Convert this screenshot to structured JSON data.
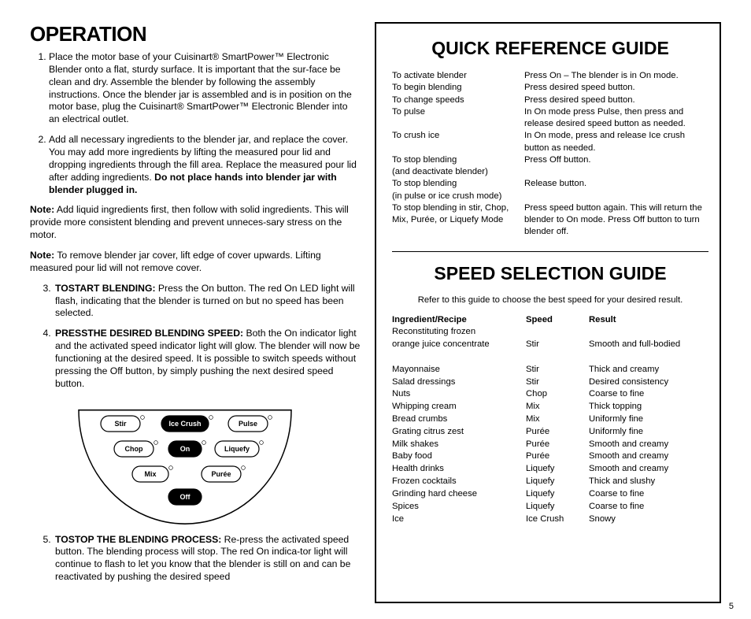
{
  "page_number": "5",
  "left": {
    "title": "OPERATION",
    "step1": "Place the motor base of your Cuisinart® SmartPower™ Electronic Blender onto a flat, sturdy surface. It is important that the sur-face be clean and dry. Assemble the blender by following the assembly instructions. Once the blender jar is assembled and is in position on the motor base, plug the Cuisinart® SmartPower™ Electronic Blender into an electrical outlet.",
    "step2_a": "Add all necessary ingredients to the blender jar, and replace the cover. You may add more ingredients by lifting the measured pour lid and dropping ingredients through the fill area. Replace the measured pour lid after adding ingredients. ",
    "step2_b": "Do not place hands into blender jar with blender plugged in.",
    "note1_lead": "Note:",
    "note1": " Add liquid ingredients first, then follow with solid ingredients. This will provide more consistent blending and prevent unneces-sary stress on the motor.",
    "note2_lead": "Note:",
    "note2": " To remove blender jar cover, lift edge of cover upwards. Lifting measured pour lid will not remove cover.",
    "step3_lead": "TOSTART BLENDING:",
    "step3": " Press the On button. The red On LED light will flash, indicating that the blender is turned on but no speed has been selected.",
    "step4_lead": "PRESSTHE DESIRED BLENDING SPEED:",
    "step4": " Both the On indicator light and the activated speed indicator light will glow. The blender will now be functioning at the desired speed. It is possible to switch speeds without pressing the Off button, by simply pushing the next desired speed button.",
    "step5_lead": "TOSTOP THE BLENDING PROCESS:",
    "step5": " Re-press the activated speed button. The blending process will stop. The red On indica-tor light will continue to flash to let you know that the blender is still on and can be reactivated by pushing the desired speed",
    "panel": {
      "buttons_white": [
        "Stir",
        "Pulse",
        "Chop",
        "Liquefy",
        "Mix",
        "Purée"
      ],
      "buttons_black": [
        "Ice Crush",
        "On",
        "Off"
      ]
    }
  },
  "right": {
    "qref_title": "QUICK REFERENCE GUIDE",
    "qref": [
      {
        "l": "To activate blender",
        "r": "Press On – The blender is in On mode."
      },
      {
        "l": "To begin blending",
        "r": "Press desired speed button."
      },
      {
        "l": "To change speeds",
        "r": "Press desired speed button."
      },
      {
        "l": "To pulse",
        "r": "In On mode press Pulse, then press and release desired speed button as needed."
      },
      {
        "l": "To crush ice",
        "r": "In On mode, press and release Ice crush button as needed."
      },
      {
        "l": "To stop blending",
        "sub": "(and deactivate blender)",
        "r": "Press Off button."
      },
      {
        "l": "To stop blending",
        "sub": "(in pulse or ice crush mode)",
        "r": "Release button."
      },
      {
        "l": "To stop blending in stir, Chop, Mix, Purée, or Liquefy Mode",
        "r": "Press speed button again. This will return the blender to On mode. Press  Off button to turn blender off."
      }
    ],
    "speed_title": "SPEED SELECTION GUIDE",
    "speed_sub": "Refer to this guide to choose the best speed for your desired result.",
    "speed_head": {
      "c1": "Ingredient/Recipe",
      "c2": "Speed",
      "c3": "Result"
    },
    "speed_rows": [
      {
        "c1": "Reconstituting frozen",
        "c2": "",
        "c3": ""
      },
      {
        "c1": "orange juice concentrate",
        "c2": "Stir",
        "c3": "Smooth and full-bodied"
      },
      {
        "c1": " ",
        "c2": "",
        "c3": ""
      },
      {
        "c1": "Mayonnaise",
        "c2": "Stir",
        "c3": "Thick and creamy"
      },
      {
        "c1": "Salad dressings",
        "c2": "Stir",
        "c3": "Desired consistency"
      },
      {
        "c1": "Nuts",
        "c2": "Chop",
        "c3": "Coarse to fine"
      },
      {
        "c1": "Whipping cream",
        "c2": "Mix",
        "c3": "Thick topping"
      },
      {
        "c1": "Bread crumbs",
        "c2": "Mix",
        "c3": "Uniformly fine"
      },
      {
        "c1": "Grating citrus zest",
        "c2": "Purée",
        "c3": "Uniformly fine"
      },
      {
        "c1": "Milk shakes",
        "c2": "Purée",
        "c3": "Smooth and creamy"
      },
      {
        "c1": "Baby food",
        "c2": "Purée",
        "c3": "Smooth and creamy"
      },
      {
        "c1": "Health drinks",
        "c2": "Liquefy",
        "c3": "Smooth and creamy"
      },
      {
        "c1": "Frozen cocktails",
        "c2": "Liquefy",
        "c3": "Thick and slushy"
      },
      {
        "c1": "Grinding hard cheese",
        "c2": "Liquefy",
        "c3": "Coarse to fine"
      },
      {
        "c1": "Spices",
        "c2": "Liquefy",
        "c3": "Coarse to fine"
      },
      {
        "c1": "Ice",
        "c2": "Ice Crush",
        "c3": "Snowy"
      }
    ]
  },
  "colors": {
    "text": "#000000",
    "bg": "#ffffff",
    "border": "#000000"
  }
}
